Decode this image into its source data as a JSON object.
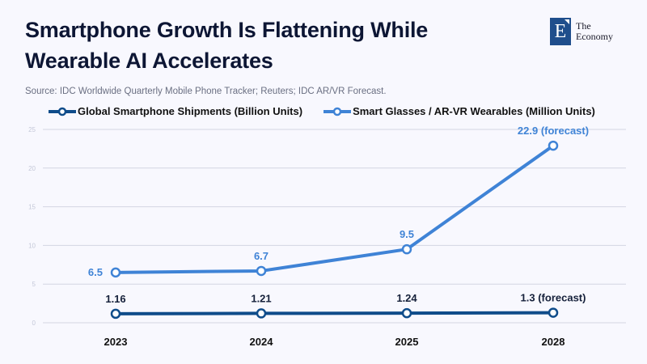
{
  "header": {
    "title": "Smartphone Growth Is Flattening While Wearable AI Accelerates",
    "source": "Source: IDC Worldwide Quarterly Mobile Phone Tracker; Reuters; IDC AR/VR Forecast."
  },
  "logo": {
    "letter": "E",
    "line1": "The",
    "line2": "Economy"
  },
  "colors": {
    "smartphone": "#0f4c8a",
    "wearables": "#3f83d6",
    "grid": "#d3d6e2",
    "axis_text": "#c4c8d8"
  },
  "chart_data": {
    "type": "line",
    "title": "Smartphone Growth Is Flattening While Wearable AI Accelerates",
    "xlabel": "",
    "ylabel": "",
    "categories": [
      "2023",
      "2024",
      "2025",
      "2028"
    ],
    "ylim": [
      0,
      25
    ],
    "yticks": [
      0,
      5,
      10,
      15,
      20,
      25
    ],
    "grid": true,
    "legend_position": "top",
    "series": [
      {
        "name": "Global Smartphone Shipments (Billion Units)",
        "values": [
          1.16,
          1.21,
          1.24,
          1.3
        ],
        "labels": [
          "1.16",
          "1.21",
          "1.24",
          "1.3 (forecast)"
        ]
      },
      {
        "name": "Smart Glasses / AR-VR Wearables (Million Units)",
        "values": [
          6.5,
          6.7,
          9.5,
          22.9
        ],
        "labels": [
          "6.5",
          "6.7",
          "9.5",
          "22.9 (forecast)"
        ]
      }
    ]
  }
}
